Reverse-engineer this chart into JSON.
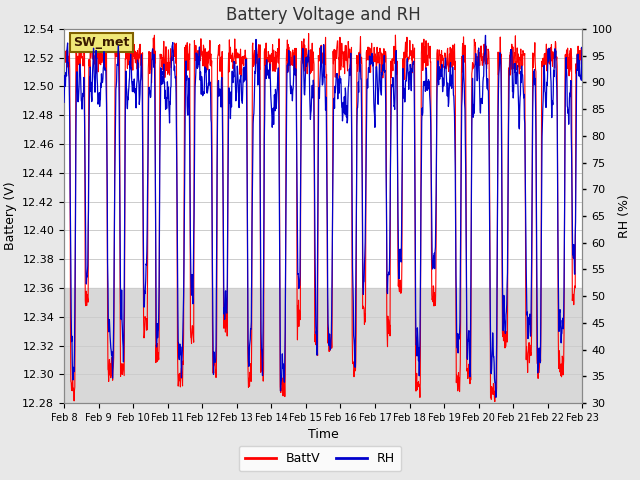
{
  "title": "Battery Voltage and RH",
  "xlabel": "Time",
  "ylabel_left": "Battery (V)",
  "ylabel_right": "RH (%)",
  "annotation": "SW_met",
  "x_tick_labels": [
    "Feb 8",
    "Feb 9",
    "Feb 10",
    "Feb 11",
    "Feb 12",
    "Feb 13",
    "Feb 14",
    "Feb 15",
    "Feb 16",
    "Feb 17",
    "Feb 18",
    "Feb 19",
    "Feb 20",
    "Feb 21",
    "Feb 22",
    "Feb 23"
  ],
  "ylim_left": [
    12.28,
    12.54
  ],
  "ylim_right": [
    30,
    100
  ],
  "yticks_left": [
    12.28,
    12.3,
    12.32,
    12.34,
    12.36,
    12.38,
    12.4,
    12.42,
    12.44,
    12.46,
    12.48,
    12.5,
    12.52,
    12.54
  ],
  "yticks_right": [
    30,
    35,
    40,
    45,
    50,
    55,
    60,
    65,
    70,
    75,
    80,
    85,
    90,
    95,
    100
  ],
  "bg_color": "#e8e8e8",
  "plot_bg_color": "#ffffff",
  "grid_color": "#cccccc",
  "band_color": "#d8d8d8",
  "line_color_batt": "#ff0000",
  "line_color_rh": "#0000cc",
  "legend_batt": "BattV",
  "legend_rh": "RH",
  "title_fontsize": 12,
  "label_fontsize": 9,
  "tick_fontsize": 8
}
